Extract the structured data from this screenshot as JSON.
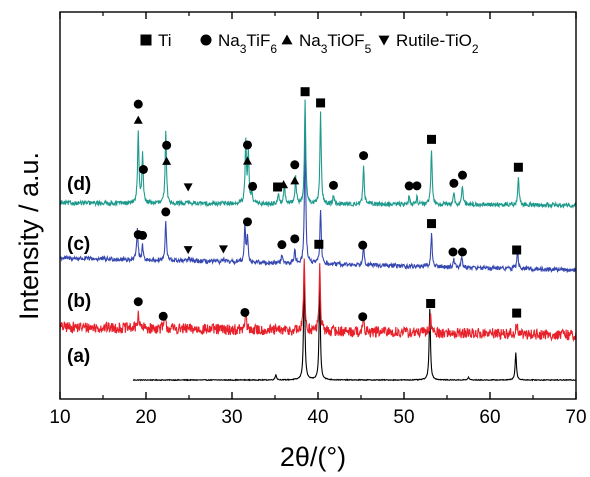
{
  "chart_data": {
    "type": "line",
    "title": "",
    "xlabel": "2θ/(°)",
    "ylabel": "Intensity / a.u.",
    "xlim": [
      10,
      70
    ],
    "x_ticks": [
      10,
      20,
      30,
      40,
      50,
      60,
      70
    ],
    "y_ticks_shown": false,
    "grid": false,
    "legend_position": "top",
    "legend": [
      {
        "name": "Ti",
        "symbol": "square"
      },
      {
        "name": "Na3TiF6",
        "symbol": "circle"
      },
      {
        "name": "Na3TiOF5",
        "symbol": "triangle-up"
      },
      {
        "name": "Rutile-TiO2",
        "symbol": "triangle-down"
      }
    ],
    "series": [
      {
        "name": "(a)",
        "color": "#000000",
        "noise": 0.15,
        "peaks": [
          [
            35.1,
            2
          ],
          [
            38.4,
            40
          ],
          [
            40.2,
            34
          ],
          [
            53.0,
            26
          ],
          [
            63.0,
            10
          ],
          [
            57.5,
            1
          ]
        ],
        "markers": []
      },
      {
        "name": "(b)",
        "color": "#e8202a",
        "noise": 2.0,
        "peaks": [
          [
            19.1,
            6
          ],
          [
            22.2,
            5
          ],
          [
            31.6,
            6
          ],
          [
            38.4,
            27
          ],
          [
            40.2,
            24
          ],
          [
            45.3,
            4
          ],
          [
            53.1,
            7
          ],
          [
            63.1,
            4
          ]
        ],
        "markers": [
          {
            "x": 19.1,
            "symbol": "circle"
          },
          {
            "x": 22.0,
            "symbol": "circle"
          },
          {
            "x": 31.5,
            "symbol": "circle"
          },
          {
            "x": 45.2,
            "symbol": "circle"
          },
          {
            "x": 53.1,
            "symbol": "square"
          },
          {
            "x": 63.1,
            "symbol": "square"
          }
        ]
      },
      {
        "name": "(c)",
        "color": "#3648b0",
        "noise": 0.8,
        "peaks": [
          [
            19.0,
            12
          ],
          [
            19.6,
            5
          ],
          [
            22.3,
            14
          ],
          [
            31.5,
            13
          ],
          [
            31.8,
            10
          ],
          [
            35.8,
            3
          ],
          [
            37.3,
            5
          ],
          [
            38.5,
            48
          ],
          [
            40.3,
            20
          ],
          [
            45.3,
            8
          ],
          [
            53.2,
            12
          ],
          [
            55.8,
            3
          ],
          [
            56.7,
            4
          ],
          [
            63.2,
            7
          ],
          [
            25.0,
            1
          ],
          [
            29.0,
            1
          ]
        ],
        "markers": [
          {
            "x": 19.1,
            "symbol": "circle"
          },
          {
            "x": 19.6,
            "symbol": "circle"
          },
          {
            "x": 22.3,
            "symbol": "circle"
          },
          {
            "x": 31.8,
            "symbol": "circle"
          },
          {
            "x": 35.8,
            "symbol": "circle"
          },
          {
            "x": 37.3,
            "symbol": "circle"
          },
          {
            "x": 40.1,
            "symbol": "square"
          },
          {
            "x": 45.2,
            "symbol": "circle"
          },
          {
            "x": 53.2,
            "symbol": "square"
          },
          {
            "x": 55.7,
            "symbol": "circle"
          },
          {
            "x": 56.8,
            "symbol": "circle"
          },
          {
            "x": 63.1,
            "symbol": "square"
          },
          {
            "x": 24.9,
            "symbol": "triangle-down"
          },
          {
            "x": 29.0,
            "symbol": "triangle-down"
          }
        ]
      },
      {
        "name": "(d)",
        "color": "#1e9a8c",
        "noise": 0.8,
        "peaks": [
          [
            19.1,
            26
          ],
          [
            19.6,
            18
          ],
          [
            22.3,
            26
          ],
          [
            31.6,
            22
          ],
          [
            31.9,
            18
          ],
          [
            32.3,
            4
          ],
          [
            35.4,
            4
          ],
          [
            36.1,
            7
          ],
          [
            37.4,
            10
          ],
          [
            38.5,
            37
          ],
          [
            40.3,
            33
          ],
          [
            41.8,
            3
          ],
          [
            45.3,
            14
          ],
          [
            50.6,
            3
          ],
          [
            51.5,
            3
          ],
          [
            53.2,
            20
          ],
          [
            55.8,
            4
          ],
          [
            56.8,
            7
          ],
          [
            63.3,
            10
          ],
          [
            24.8,
            1
          ]
        ],
        "markers": [
          {
            "x": 19.1,
            "symbol": "triangle-up"
          },
          {
            "x": 19.1,
            "symbol": "circle"
          },
          {
            "x": 19.7,
            "symbol": "circle"
          },
          {
            "x": 22.4,
            "symbol": "triangle-up"
          },
          {
            "x": 22.4,
            "symbol": "circle"
          },
          {
            "x": 31.8,
            "symbol": "triangle-up"
          },
          {
            "x": 31.8,
            "symbol": "circle"
          },
          {
            "x": 32.4,
            "symbol": "circle"
          },
          {
            "x": 35.3,
            "symbol": "square"
          },
          {
            "x": 36.0,
            "symbol": "triangle-up"
          },
          {
            "x": 37.3,
            "symbol": "triangle-up"
          },
          {
            "x": 37.3,
            "symbol": "circle"
          },
          {
            "x": 38.5,
            "symbol": "square"
          },
          {
            "x": 40.3,
            "symbol": "square"
          },
          {
            "x": 41.8,
            "symbol": "circle"
          },
          {
            "x": 45.3,
            "symbol": "circle"
          },
          {
            "x": 50.6,
            "symbol": "circle"
          },
          {
            "x": 51.5,
            "symbol": "circle"
          },
          {
            "x": 53.2,
            "symbol": "square"
          },
          {
            "x": 55.8,
            "symbol": "circle"
          },
          {
            "x": 56.8,
            "symbol": "circle"
          },
          {
            "x": 63.3,
            "symbol": "square"
          },
          {
            "x": 24.9,
            "symbol": "triangle-down"
          }
        ]
      }
    ]
  }
}
